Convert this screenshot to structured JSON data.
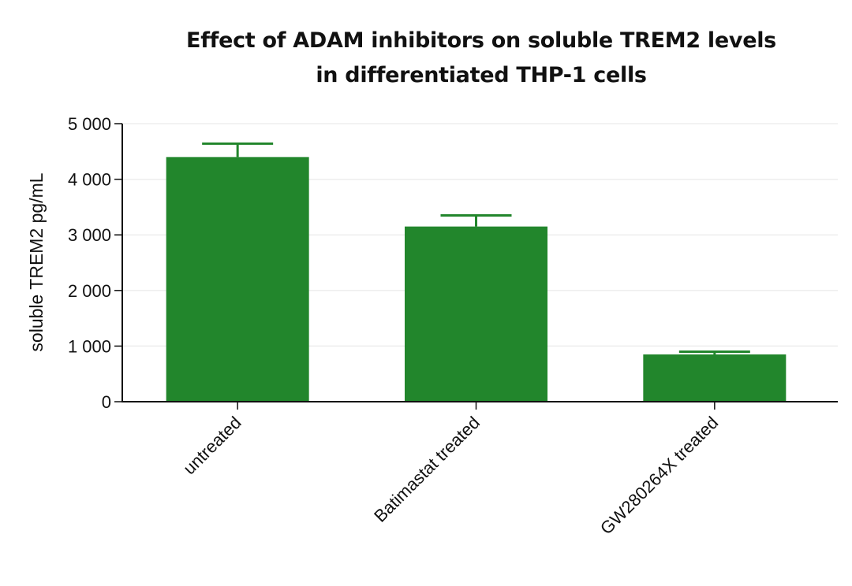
{
  "chart_data": {
    "type": "bar",
    "title": "Effect of ADAM inhibitors on soluble TREM2 levels in differentiated THP-1 cells",
    "title_lines": [
      "Effect of ADAM inhibitors on soluble TREM2 levels",
      "in differentiated THP-1 cells"
    ],
    "xlabel": "",
    "ylabel": "soluble TREM2 pg/mL",
    "categories": [
      "untreated",
      "Batimastat treated",
      "GW280264X treated"
    ],
    "values": [
      4400,
      3150,
      850
    ],
    "error_upper": [
      4640,
      3350,
      900
    ],
    "ylim": [
      0,
      5000
    ],
    "yticks": [
      0,
      1000,
      2000,
      3000,
      4000,
      5000
    ],
    "ytick_labels": [
      "0",
      "1 000",
      "2 000",
      "3 000",
      "4 000",
      "5 000"
    ],
    "grid": true,
    "legend": null,
    "colors": {
      "bar": "#22862c",
      "axis": "#111111",
      "grid": "#eeeeee"
    }
  }
}
